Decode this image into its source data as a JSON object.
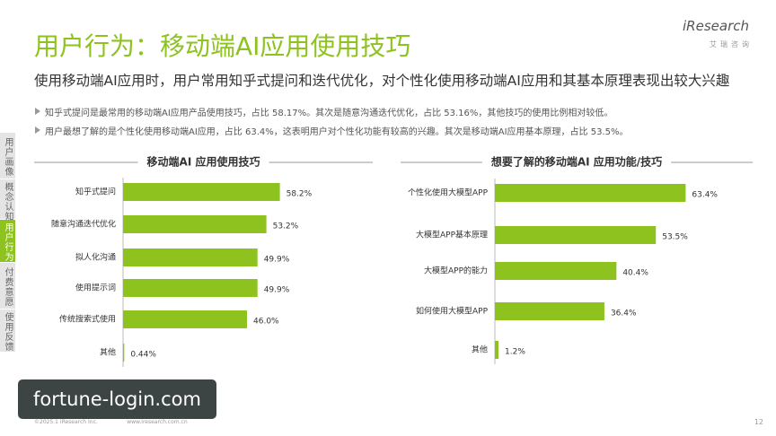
{
  "header": {
    "title": "用户行为：移动端AI应用使用技巧",
    "subtitle": "使用移动端AI应用时，用户常用知乎式提问和迭代优化，对个性化使用移动端AI应用和其基本原理表现出较大兴趣",
    "logo": "iResearch",
    "logo_sub": "艾瑞咨询"
  },
  "bullets": [
    "知乎式提问是最常用的移动端AI应用产品使用技巧，占比 58.17%。其次是随意沟通迭代优化，占比 53.16%，其他技巧的使用比例相对较低。",
    "用户最想了解的是个性化使用移动端AI应用，占比 63.4%，这表明用户对个性化功能有较高的兴趣。其次是移动端AI应用基本原理，占比 53.5%。"
  ],
  "sidebar": [
    "用户画像",
    "概念认知",
    "用户行为",
    "付费意愿",
    "使用反馈"
  ],
  "chart_data": [
    {
      "type": "hbar",
      "title": "移动端AI 应用使用技巧",
      "color": "#8dc21f",
      "categories": [
        "知乎式提问",
        "随意沟通迭代优化",
        "拟人化沟通",
        "使用提示词",
        "传统搜索式使用",
        "其他"
      ],
      "values": [
        58.2,
        53.2,
        49.9,
        49.9,
        46.0,
        0.44
      ],
      "value_labels": [
        "58.2%",
        "53.2%",
        "49.9%",
        "49.9%",
        "46.0%",
        "0.44%"
      ]
    },
    {
      "type": "hbar",
      "title": "想要了解的移动端AI 应用功能/技巧",
      "color": "#8dc21f",
      "categories": [
        "个性化使用大模型APP",
        "大模型APP基本原理",
        "大模型APP的能力",
        "如何使用大模型APP",
        "其他"
      ],
      "values": [
        63.4,
        53.5,
        40.4,
        36.4,
        1.2
      ],
      "value_labels": [
        "63.4%",
        "53.5%",
        "40.4%",
        "36.4%",
        "1.2%"
      ]
    }
  ],
  "footer": {
    "copyright": "©2025.1 iResearch Inc.                 www.iresearch.com.cn",
    "page": "12"
  },
  "watermark": "fortune-login.com"
}
